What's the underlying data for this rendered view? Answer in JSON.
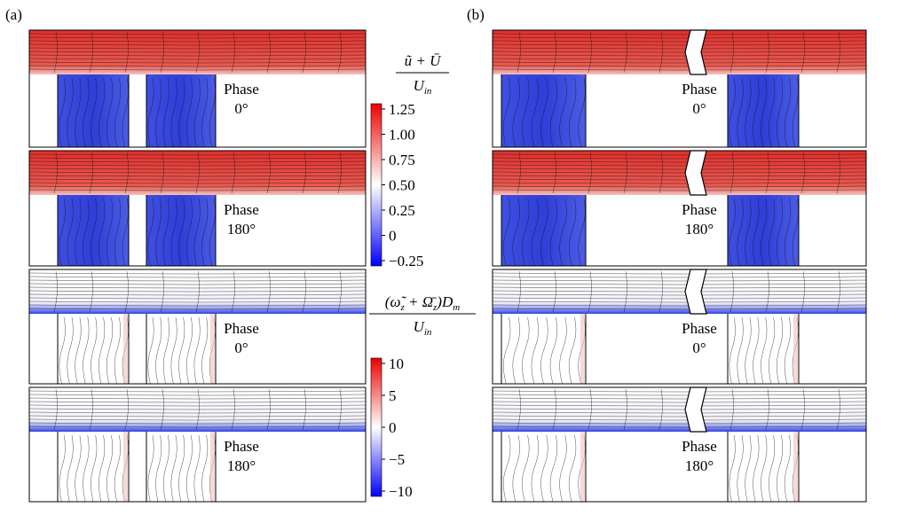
{
  "panels": [
    {
      "label": "(a)",
      "rows": [
        {
          "phase": "Phase",
          "angle": "0°"
        },
        {
          "phase": "Phase",
          "angle": "180°"
        },
        {
          "phase": "Phase",
          "angle": "0°"
        },
        {
          "phase": "Phase",
          "angle": "180°"
        }
      ]
    },
    {
      "label": "(b)",
      "rows": [
        {
          "phase": "Phase",
          "angle": "0°"
        },
        {
          "phase": "Phase",
          "angle": "180°"
        },
        {
          "phase": "Phase",
          "angle": "0°"
        },
        {
          "phase": "Phase",
          "angle": "180°"
        }
      ]
    }
  ],
  "colorbars": [
    {
      "numerator": [
        {
          "text": "ũ",
          "sub": false
        },
        {
          "text": " + ",
          "sub": false
        },
        {
          "text": "Ū",
          "sub": false
        }
      ],
      "denominator": [
        {
          "text": "U",
          "sub": false
        },
        {
          "text": "in",
          "sub": true
        }
      ],
      "ticks": [
        "1.25",
        "1.00",
        "0.75",
        "0.50",
        "0.25",
        "0",
        "−0.25"
      ]
    },
    {
      "numerator": [
        {
          "text": "(ω̃",
          "sub": false
        },
        {
          "text": "z",
          "sub": true
        },
        {
          "text": " + ",
          "sub": false
        },
        {
          "text": "Ω̄",
          "sub": false
        },
        {
          "text": "z",
          "sub": true
        },
        {
          "text": ")D",
          "sub": false
        },
        {
          "text": "m",
          "sub": true
        }
      ],
      "denominator": [
        {
          "text": "U",
          "sub": false
        },
        {
          "text": "in",
          "sub": true
        }
      ],
      "ticks": [
        "10",
        "5",
        "0",
        "−5",
        "−10"
      ]
    }
  ]
}
